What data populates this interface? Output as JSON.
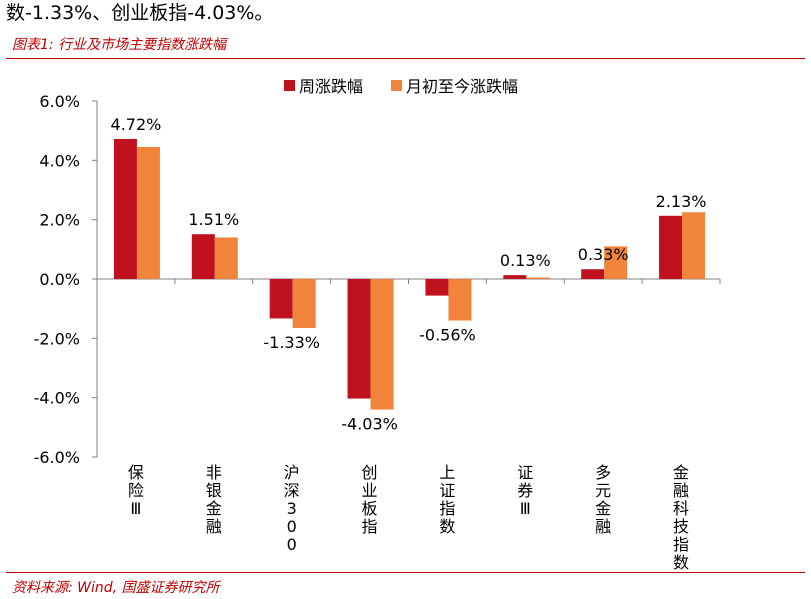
{
  "header_text": "数-1.33%、创业板指-4.03%。",
  "figure_title": "图表1:  行业及市场主要指数涨跌幅",
  "source": "资料来源:  Wind,  国盛证券研究所",
  "colors": {
    "weekly": "#c0111e",
    "monthly": "#f0843a",
    "accent": "#c00000"
  },
  "chart_data": {
    "type": "bar",
    "categories": [
      "保险Ⅲ",
      "非银金融",
      "沪深300",
      "创业板指",
      "上证指数",
      "证券Ⅲ",
      "多元金融",
      "金融科技指数"
    ],
    "series": [
      {
        "name": "周涨跌幅",
        "values": [
          4.72,
          1.51,
          -1.33,
          -4.03,
          -0.56,
          0.13,
          0.33,
          2.13
        ]
      },
      {
        "name": "月初至今涨跌幅",
        "values": [
          4.45,
          1.4,
          -1.65,
          -4.4,
          -1.4,
          0.05,
          1.1,
          2.25
        ]
      }
    ],
    "data_labels": [
      "4.72%",
      "1.51%",
      "-1.33%",
      "-4.03%",
      "-0.56%",
      "0.13%",
      "0.33%",
      "2.13%"
    ],
    "y_ticks": [
      "6.0%",
      "4.0%",
      "2.0%",
      "0.0%",
      "-2.0%",
      "-4.0%",
      "-6.0%"
    ],
    "ylim": [
      -6,
      6
    ],
    "legend_position": "top"
  }
}
